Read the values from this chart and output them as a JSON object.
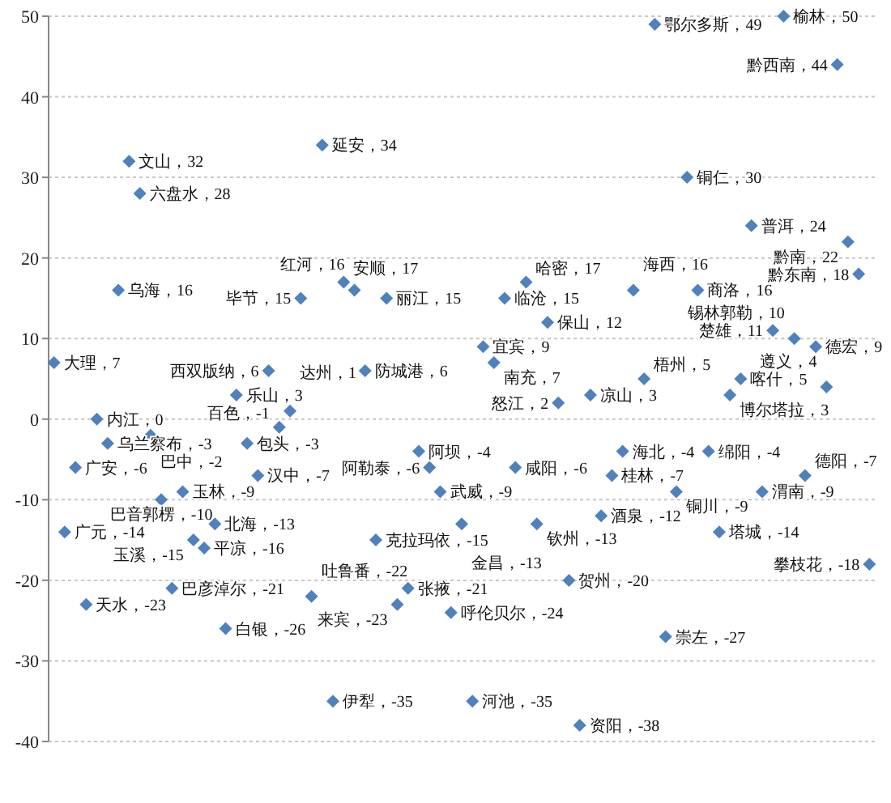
{
  "chart_data": {
    "type": "scatter",
    "marker": "diamond",
    "color": "#4f81bd",
    "grid": "y",
    "ylim": [
      -40,
      50
    ],
    "yticks": [
      -40,
      -30,
      -20,
      -10,
      0,
      10,
      20,
      30,
      40,
      50
    ],
    "categories": [
      null,
      null,
      null,
      null,
      null,
      null,
      null,
      null,
      null,
      null,
      null,
      null,
      null,
      null,
      null,
      null,
      null,
      null,
      null,
      null,
      null,
      null,
      null,
      null,
      null,
      null,
      null,
      null,
      null,
      null,
      null,
      null,
      null,
      null,
      null,
      null,
      null,
      null,
      null,
      null,
      null,
      null,
      null,
      null,
      null,
      null,
      null,
      null,
      null,
      null,
      null,
      null,
      null,
      null,
      null,
      null,
      null,
      null,
      null,
      null,
      null,
      null,
      null,
      null,
      null,
      null,
      null,
      null,
      null,
      null,
      null,
      null,
      null,
      null,
      null,
      null,
      null
    ],
    "values": [
      7,
      -14,
      -6,
      -23,
      0,
      -3,
      16,
      32,
      28,
      -2,
      -10,
      -21,
      -9,
      -15,
      -16,
      -13,
      -26,
      3,
      -3,
      -7,
      6,
      -1,
      1,
      15,
      -22,
      34,
      -35,
      17,
      16,
      6,
      -15,
      15,
      -23,
      -21,
      -4,
      -6,
      -9,
      -24,
      -13,
      -35,
      9,
      7,
      15,
      -6,
      17,
      -13,
      12,
      2,
      -20,
      -38,
      3,
      -12,
      -7,
      -4,
      16,
      5,
      49,
      -27,
      -9,
      30,
      16,
      -4,
      -14,
      3,
      5,
      24,
      -9,
      11,
      50,
      10,
      -7,
      9,
      4,
      44,
      22,
      18,
      -18
    ],
    "value_labels": [
      "大理，7",
      "广元，-14",
      "广安，-6",
      "天水，-23",
      "内江，0",
      "乌兰察布，-3",
      "乌海，16",
      "文山，32",
      "六盘水，28",
      "巴中，-2",
      "巴音郭楞，-10",
      "巴彦淖尔，-21",
      "玉林，-9",
      "玉溪，-15",
      "平凉，-16",
      "北海，-13",
      "白银，-26",
      "乐山，3",
      "包头，-3",
      "汉中，-7",
      "西双版纳，6",
      "百色，-1",
      "达州，1",
      "毕节，15",
      "吐鲁番，-22",
      "延安，34",
      "伊犁，-35",
      "安顺，17",
      "红河，16",
      "防城港，6",
      "克拉玛依，-15",
      "丽江，15",
      "来宾，-23",
      "张掖，-21",
      "阿坝，-4",
      "阿勒泰，-6",
      "武威，-9",
      "呼伦贝尔，-24",
      "金昌，-13",
      "河池，-35",
      "宜宾，9",
      "南充，7",
      "临沧，15",
      "咸阳，-6",
      "哈密，17",
      "钦州，-13",
      "保山，12",
      "怒江，2",
      "贺州，-20",
      "资阳，-38",
      "凉山，3",
      "酒泉，-12",
      "桂林，-7",
      "海北，-4",
      "海西，16",
      "梧州，5",
      "鄂尔多斯，49",
      "崇左，-27",
      "铜川，-9",
      "铜仁，30",
      "商洛，16",
      "绵阳，-4",
      "塔城，-14",
      "博尔塔拉，3",
      "喀什，5",
      "普洱，24",
      "渭南，-9",
      "楚雄，11",
      "榆林，50",
      "锡林郭勒，10",
      "德阳，-7",
      "德宏，9",
      "遵义，4",
      "黔西南，44",
      "黔南，22",
      "黔东南，18",
      "攀枝花，-18"
    ]
  }
}
